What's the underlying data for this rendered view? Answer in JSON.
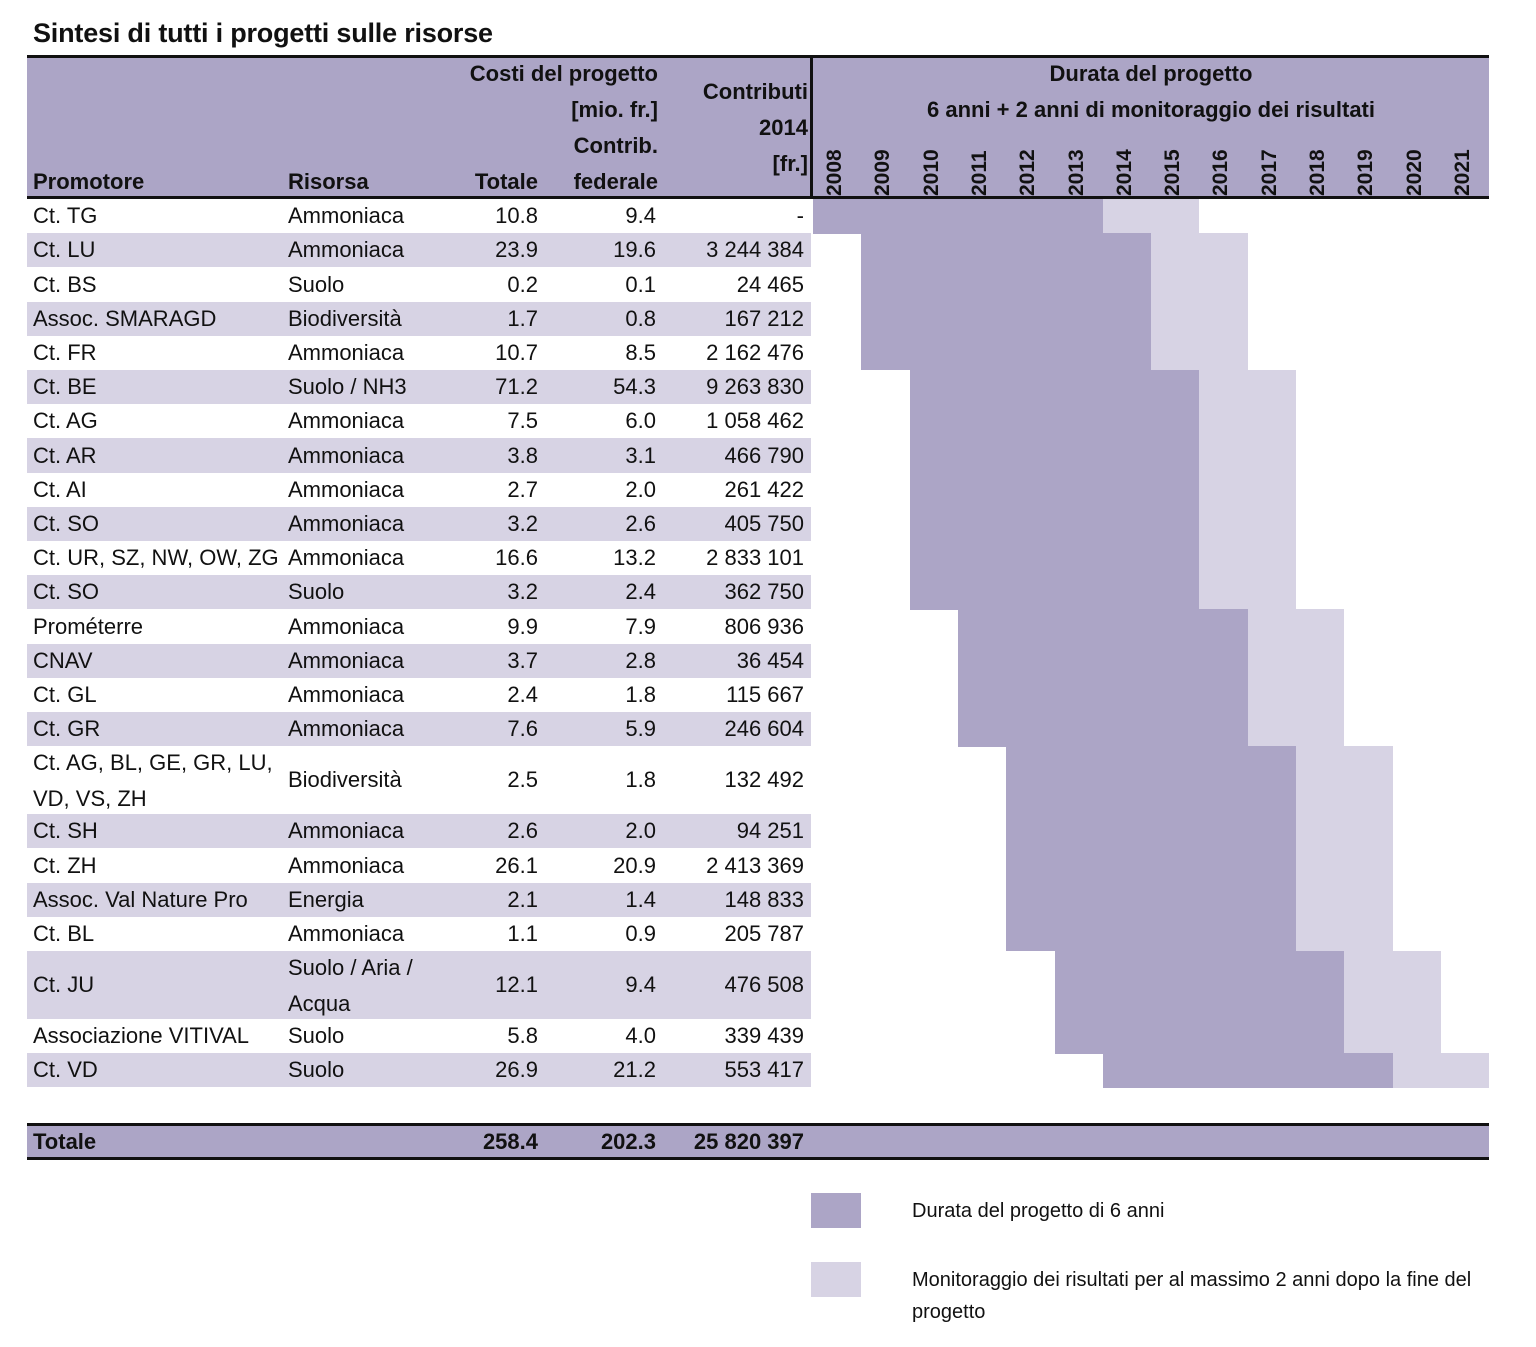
{
  "title": "Sintesi di tutti i progetti sulle risorse",
  "header": {
    "promotore": "Promotore",
    "risorsa": "Risorsa",
    "costi_line1": "Costi del progetto",
    "costi_line2": "[mio. fr.]",
    "totale": "Totale",
    "contrib_line1": "Contrib.",
    "contrib_line2": "federale",
    "contributi_line1": "Contributi",
    "contributi_line2": "2014",
    "contributi_line3": "[fr.]",
    "durata_line1": "Durata del progetto",
    "durata_line2": "6 anni + 2 anni di monitoraggio dei risultati"
  },
  "years": [
    "2008",
    "2009",
    "2010",
    "2011",
    "2012",
    "2013",
    "2014",
    "2015",
    "2016",
    "2017",
    "2018",
    "2019",
    "2020",
    "2021"
  ],
  "rows": [
    {
      "promotore": "Ct. TG",
      "risorsa": "Ammoniaca",
      "totale": "10.8",
      "federale": "9.4",
      "contributi": "-",
      "start": 2008,
      "proj_years": 6,
      "mon_years": 2
    },
    {
      "promotore": "Ct. LU",
      "risorsa": "Ammoniaca",
      "totale": "23.9",
      "federale": "19.6",
      "contributi": "3 244 384",
      "start": 2009,
      "proj_years": 6,
      "mon_years": 2
    },
    {
      "promotore": "Ct. BS",
      "risorsa": "Suolo",
      "totale": "0.2",
      "federale": "0.1",
      "contributi": "24 465",
      "start": 2009,
      "proj_years": 6,
      "mon_years": 2
    },
    {
      "promotore": "Assoc. SMARAGD",
      "risorsa": "Biodiversità",
      "totale": "1.7",
      "federale": "0.8",
      "contributi": "167 212",
      "start": 2009,
      "proj_years": 6,
      "mon_years": 2
    },
    {
      "promotore": "Ct. FR",
      "risorsa": "Ammoniaca",
      "totale": "10.7",
      "federale": "8.5",
      "contributi": "2 162 476",
      "start": 2009,
      "proj_years": 6,
      "mon_years": 2
    },
    {
      "promotore": "Ct. BE",
      "risorsa": "Suolo / NH3",
      "totale": "71.2",
      "federale": "54.3",
      "contributi": "9 263 830",
      "start": 2010,
      "proj_years": 6,
      "mon_years": 2
    },
    {
      "promotore": "Ct. AG",
      "risorsa": "Ammoniaca",
      "totale": "7.5",
      "federale": "6.0",
      "contributi": "1 058 462",
      "start": 2010,
      "proj_years": 6,
      "mon_years": 2
    },
    {
      "promotore": "Ct. AR",
      "risorsa": "Ammoniaca",
      "totale": "3.8",
      "federale": "3.1",
      "contributi": "466 790",
      "start": 2010,
      "proj_years": 6,
      "mon_years": 2
    },
    {
      "promotore": "Ct. AI",
      "risorsa": "Ammoniaca",
      "totale": "2.7",
      "federale": "2.0",
      "contributi": "261 422",
      "start": 2010,
      "proj_years": 6,
      "mon_years": 2
    },
    {
      "promotore": "Ct. SO",
      "risorsa": "Ammoniaca",
      "totale": "3.2",
      "federale": "2.6",
      "contributi": "405 750",
      "start": 2010,
      "proj_years": 6,
      "mon_years": 2
    },
    {
      "promotore": "Ct. UR, SZ, NW, OW, ZG",
      "risorsa": "Ammoniaca",
      "totale": "16.6",
      "federale": "13.2",
      "contributi": "2 833 101",
      "start": 2010,
      "proj_years": 6,
      "mon_years": 2
    },
    {
      "promotore": "Ct. SO",
      "risorsa": "Suolo",
      "totale": "3.2",
      "federale": "2.4",
      "contributi": "362 750",
      "start": 2010,
      "proj_years": 6,
      "mon_years": 2
    },
    {
      "promotore": "Prométerre",
      "risorsa": "Ammoniaca",
      "totale": "9.9",
      "federale": "7.9",
      "contributi": "806 936",
      "start": 2011,
      "proj_years": 6,
      "mon_years": 2
    },
    {
      "promotore": "CNAV",
      "risorsa": "Ammoniaca",
      "totale": "3.7",
      "federale": "2.8",
      "contributi": "36 454",
      "start": 2011,
      "proj_years": 6,
      "mon_years": 2
    },
    {
      "promotore": "Ct. GL",
      "risorsa": "Ammoniaca",
      "totale": "2.4",
      "federale": "1.8",
      "contributi": "115 667",
      "start": 2011,
      "proj_years": 6,
      "mon_years": 2
    },
    {
      "promotore": "Ct. GR",
      "risorsa": "Ammoniaca",
      "totale": "7.6",
      "federale": "5.9",
      "contributi": "246 604",
      "start": 2011,
      "proj_years": 6,
      "mon_years": 2
    },
    {
      "promotore": "Ct. AG, BL, GE, GR, LU, VD, VS, ZH",
      "risorsa": "Biodiversità",
      "totale": "2.5",
      "federale": "1.8",
      "contributi": "132 492",
      "start": 2012,
      "proj_years": 6,
      "mon_years": 2
    },
    {
      "promotore": "Ct. SH",
      "risorsa": "Ammoniaca",
      "totale": "2.6",
      "federale": "2.0",
      "contributi": "94 251",
      "start": 2012,
      "proj_years": 6,
      "mon_years": 2
    },
    {
      "promotore": "Ct. ZH",
      "risorsa": "Ammoniaca",
      "totale": "26.1",
      "federale": "20.9",
      "contributi": "2 413 369",
      "start": 2012,
      "proj_years": 6,
      "mon_years": 2
    },
    {
      "promotore": "Assoc. Val Nature Pro",
      "risorsa": "Energia",
      "totale": "2.1",
      "federale": "1.4",
      "contributi": "148 833",
      "start": 2012,
      "proj_years": 6,
      "mon_years": 2
    },
    {
      "promotore": "Ct. BL",
      "risorsa": "Ammoniaca",
      "totale": "1.1",
      "federale": "0.9",
      "contributi": "205 787",
      "start": 2012,
      "proj_years": 6,
      "mon_years": 2
    },
    {
      "promotore": "Ct. JU",
      "risorsa": "Suolo / Aria / Acqua",
      "totale": "12.1",
      "federale": "9.4",
      "contributi": "476 508",
      "start": 2013,
      "proj_years": 6,
      "mon_years": 2
    },
    {
      "promotore": "Associazione VITIVAL",
      "risorsa": "Suolo",
      "totale": "5.8",
      "federale": "4.0",
      "contributi": "339 439",
      "start": 2013,
      "proj_years": 6,
      "mon_years": 2
    },
    {
      "promotore": "Ct. VD",
      "risorsa": "Suolo",
      "totale": "26.9",
      "federale": "21.2",
      "contributi": "553 417",
      "start": 2014,
      "proj_years": 6,
      "mon_years": 2
    }
  ],
  "total": {
    "label": "Totale",
    "totale": "258.4",
    "federale": "202.3",
    "contributi": "25 820 397"
  },
  "legend": {
    "project": "Durata del progetto di 6 anni",
    "monitoring": "Monitoraggio dei risultati per al massimo 2 anni dopo la fine del progetto"
  },
  "colors": {
    "project": "#aca5c6",
    "monitoring": "#d7d3e4",
    "stripe": "#d7d3e4"
  }
}
